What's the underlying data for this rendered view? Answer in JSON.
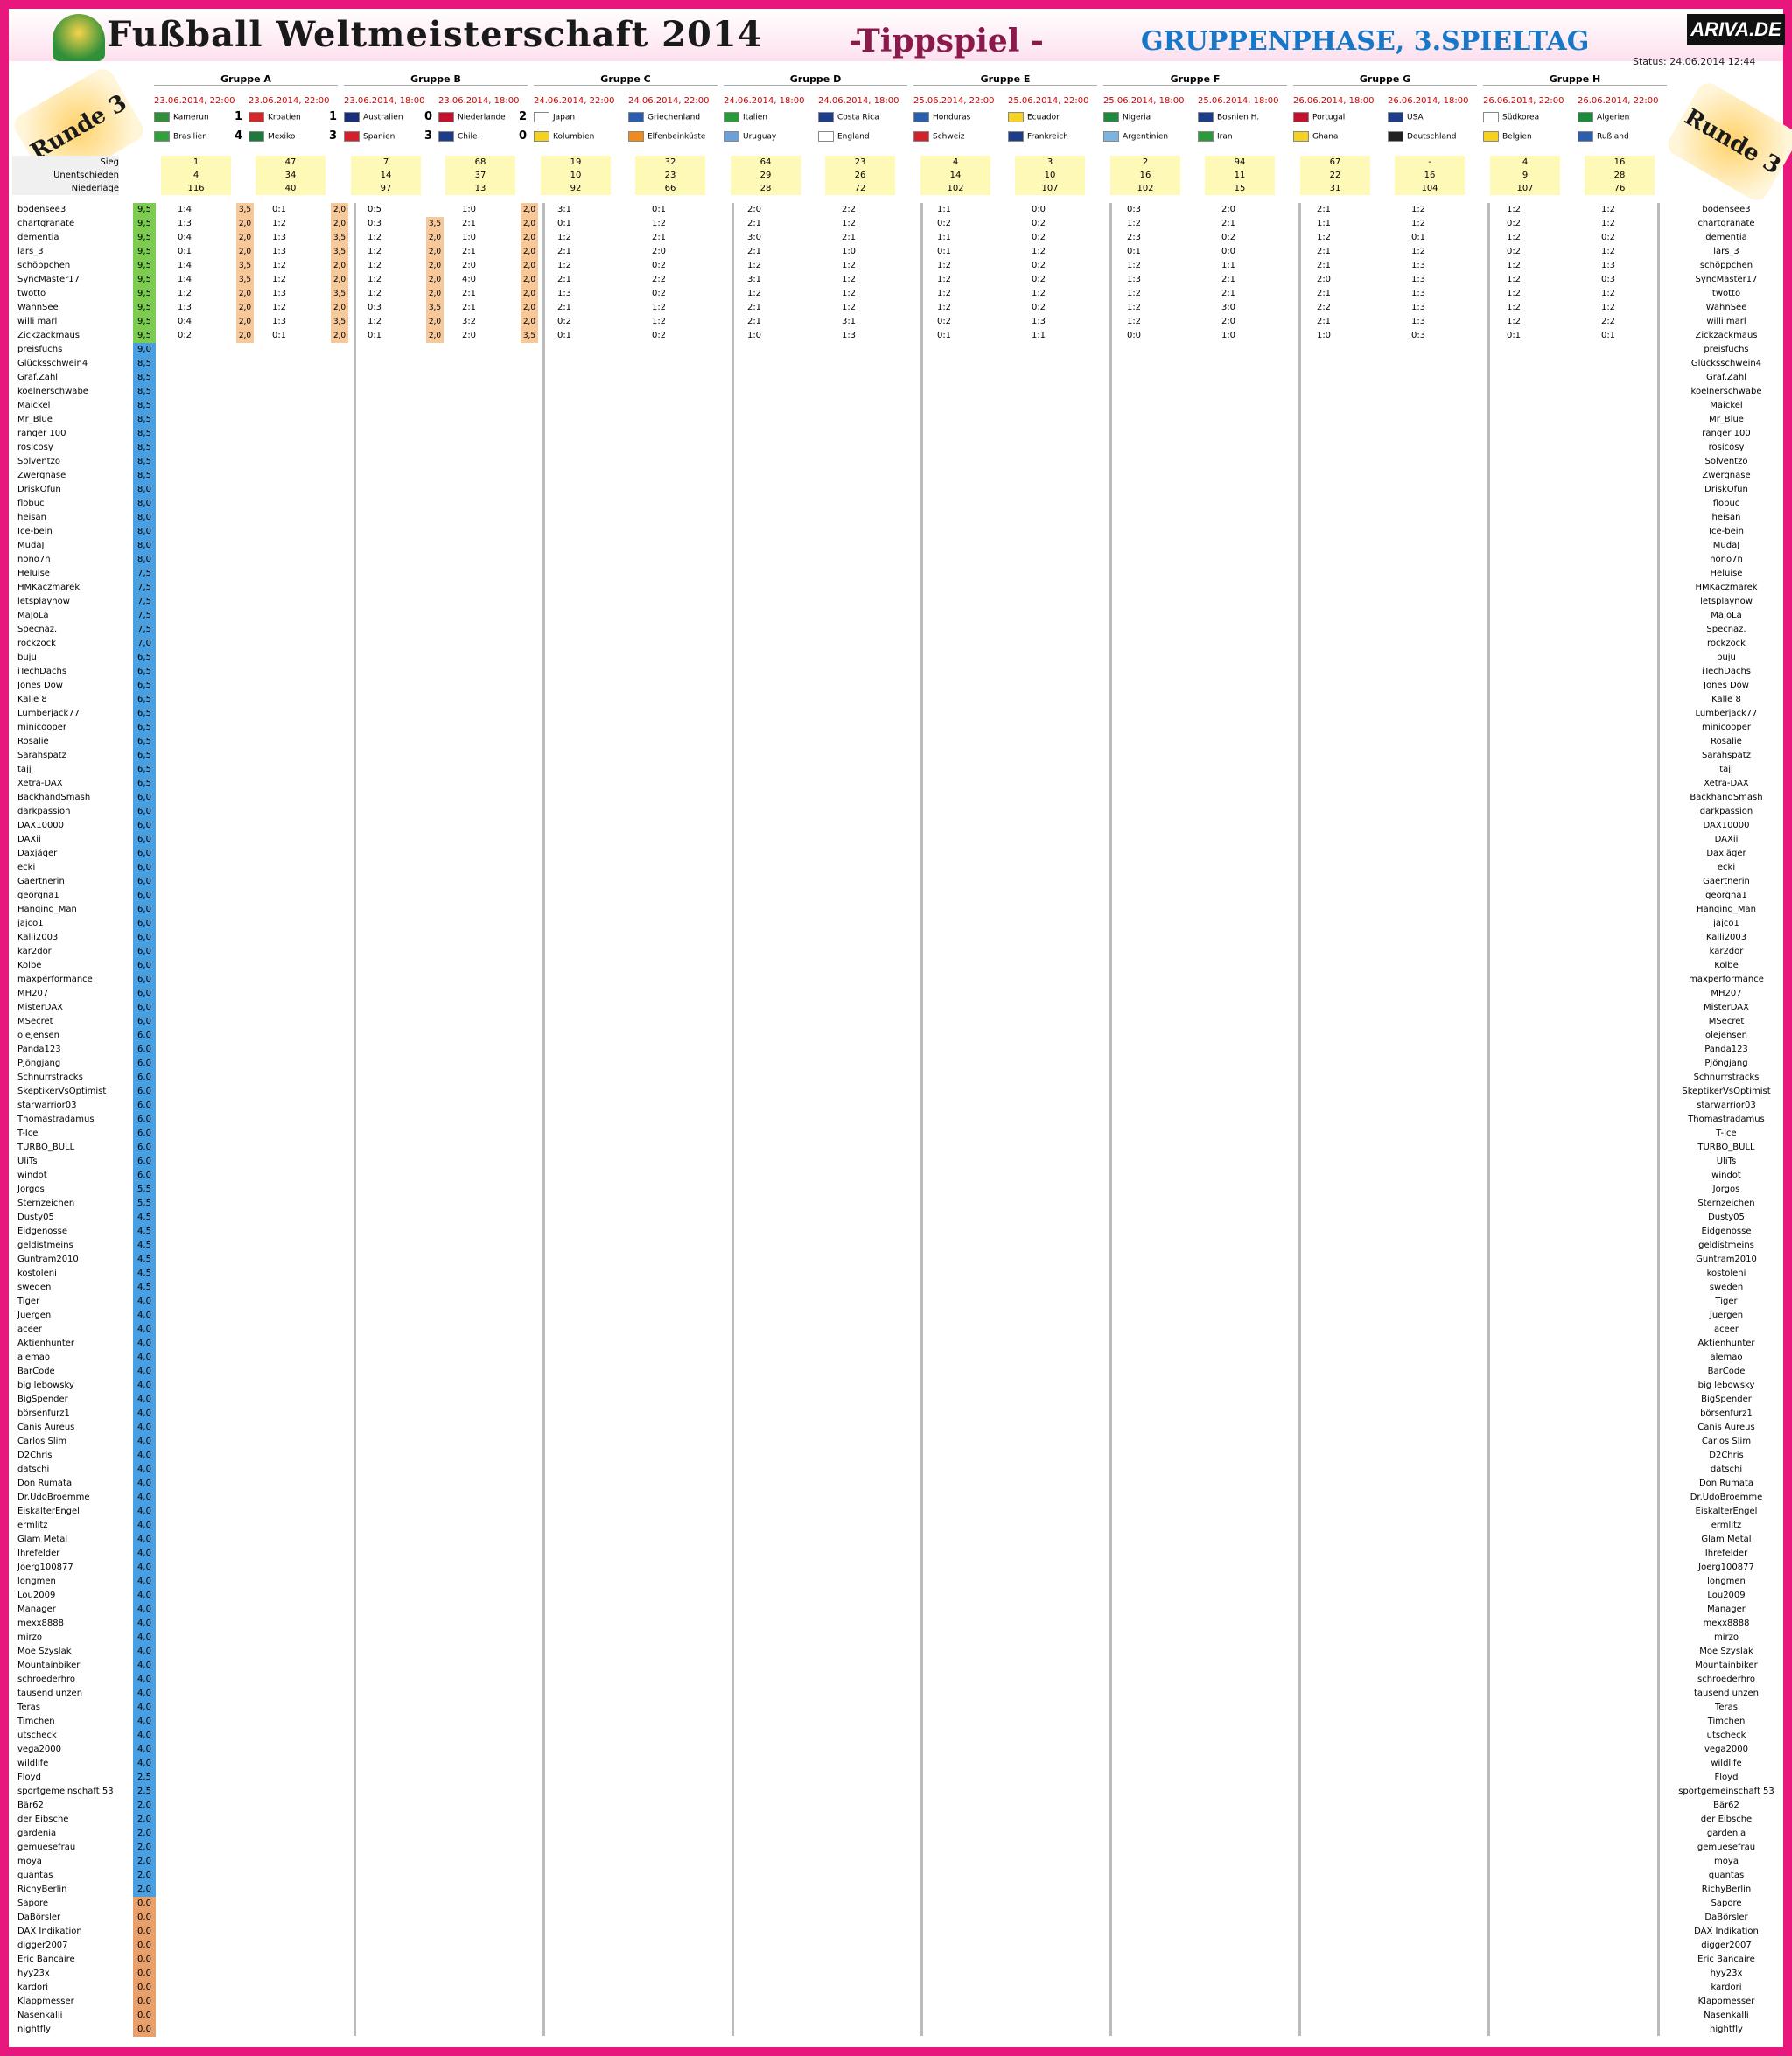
{
  "header": {
    "title": "Fußball Weltmeisterschaft 2014",
    "subtitle": "-Tippspiel -",
    "phase": "GRUPPENPHASE, 3.SPIELTAG",
    "logo_text": "ARIVA.DE",
    "status": "Status:  24.06.2014 12:44",
    "round_label": "Runde 3"
  },
  "stats_labels": [
    "Sieg",
    "Unentschieden",
    "Niederlage"
  ],
  "groups": [
    {
      "name": "Gruppe A",
      "matches": [
        {
          "date": "23.06.2014, 22:00",
          "home": "Kamerun",
          "away": "Brasilien",
          "score_home": "1",
          "score_away": "4",
          "flag_home": "#2f8f3a",
          "flag_away": "#2fa33a"
        },
        {
          "date": "23.06.2014, 22:00",
          "home": "Kroatien",
          "away": "Mexiko",
          "score_home": "1",
          "score_away": "3",
          "flag_home": "#d8252a",
          "flag_away": "#1d7a3c"
        }
      ]
    },
    {
      "name": "Gruppe B",
      "matches": [
        {
          "date": "23.06.2014, 18:00",
          "home": "Australien",
          "away": "Spanien",
          "score_home": "0",
          "score_away": "3",
          "flag_home": "#1a2f7a",
          "flag_away": "#d4202a"
        },
        {
          "date": "23.06.2014, 18:00",
          "home": "Niederlande",
          "away": "Chile",
          "score_home": "2",
          "score_away": "0",
          "flag_home": "#c8102e",
          "flag_away": "#1c3c8c"
        }
      ]
    },
    {
      "name": "Gruppe C",
      "matches": [
        {
          "date": "24.06.2014, 22:00",
          "home": "Japan",
          "away": "Kolumbien",
          "score_home": "",
          "score_away": "",
          "flag_home": "#ffffff",
          "flag_away": "#f6d21f"
        },
        {
          "date": "24.06.2014, 22:00",
          "home": "Griechenland",
          "away": "Elfenbeinküste",
          "score_home": "",
          "score_away": "",
          "flag_home": "#2a5fb0",
          "flag_away": "#f08a1c"
        }
      ]
    },
    {
      "name": "Gruppe D",
      "matches": [
        {
          "date": "24.06.2014, 18:00",
          "home": "Italien",
          "away": "Uruguay",
          "score_home": "",
          "score_away": "",
          "flag_home": "#2a9a3a",
          "flag_away": "#6ea0d8"
        },
        {
          "date": "24.06.2014, 18:00",
          "home": "Costa Rica",
          "away": "England",
          "score_home": "",
          "score_away": "",
          "flag_home": "#1c3c8c",
          "flag_away": "#ffffff"
        }
      ]
    },
    {
      "name": "Gruppe E",
      "matches": [
        {
          "date": "25.06.2014, 22:00",
          "home": "Honduras",
          "away": "Schweiz",
          "score_home": "",
          "score_away": "",
          "flag_home": "#2a5fb0",
          "flag_away": "#d4202a"
        },
        {
          "date": "25.06.2014, 22:00",
          "home": "Ecuador",
          "away": "Frankreich",
          "score_home": "",
          "score_away": "",
          "flag_home": "#f6d21f",
          "flag_away": "#1c3c8c"
        }
      ]
    },
    {
      "name": "Gruppe F",
      "matches": [
        {
          "date": "25.06.2014, 18:00",
          "home": "Nigeria",
          "away": "Argentinien",
          "score_home": "",
          "score_away": "",
          "flag_home": "#1d8a3c",
          "flag_away": "#7ab4e0"
        },
        {
          "date": "25.06.2014, 18:00",
          "home": "Bosnien H.",
          "away": "Iran",
          "score_home": "",
          "score_away": "",
          "flag_home": "#1c3c8c",
          "flag_away": "#2a9a3a"
        }
      ]
    },
    {
      "name": "Gruppe G",
      "matches": [
        {
          "date": "26.06.2014, 18:00",
          "home": "Portugal",
          "away": "Ghana",
          "score_home": "",
          "score_away": "",
          "flag_home": "#c8102e",
          "flag_away": "#f6d21f"
        },
        {
          "date": "26.06.2014, 18:00",
          "home": "USA",
          "away": "Deutschland",
          "score_home": "",
          "score_away": "",
          "flag_home": "#1c3c8c",
          "flag_away": "#222222"
        }
      ]
    },
    {
      "name": "Gruppe H",
      "matches": [
        {
          "date": "26.06.2014, 22:00",
          "home": "Südkorea",
          "away": "Belgien",
          "score_home": "",
          "score_away": "",
          "flag_home": "#ffffff",
          "flag_away": "#f6d21f"
        },
        {
          "date": "26.06.2014, 22:00",
          "home": "Algerien",
          "away": "Rußland",
          "score_home": "",
          "score_away": "",
          "flag_home": "#1d8a3c",
          "flag_away": "#2a5fb0"
        }
      ]
    }
  ],
  "stats": [
    [
      "1",
      "4",
      "116"
    ],
    [
      "47",
      "34",
      "40"
    ],
    [
      "7",
      "14",
      "97"
    ],
    [
      "68",
      "37",
      "13"
    ],
    [
      "19",
      "10",
      "92"
    ],
    [
      "32",
      "23",
      "66"
    ],
    [
      "64",
      "29",
      "28"
    ],
    [
      "23",
      "26",
      "72"
    ],
    [
      "4",
      "14",
      "102"
    ],
    [
      "3",
      "10",
      "107"
    ],
    [
      "2",
      "16",
      "102"
    ],
    [
      "94",
      "11",
      "15"
    ],
    [
      "67",
      "22",
      "31"
    ],
    [
      "-",
      "16",
      "104"
    ],
    [
      "4",
      "9",
      "107"
    ],
    [
      "16",
      "28",
      "76"
    ]
  ],
  "players": [
    {
      "name": "bodensee3",
      "pts": "9,5",
      "tips": [
        "1:4",
        "0:1",
        "0:5",
        "1:0",
        "3:1",
        "0:1",
        "2:0",
        "2:2",
        "1:1",
        "0:0",
        "0:3",
        "2:0",
        "2:1",
        "1:2",
        "1:2",
        "1:2"
      ],
      "bonus": [
        "3,5",
        "2,0",
        "",
        "2,0"
      ]
    },
    {
      "name": "chartgranate",
      "pts": "9,5",
      "tips": [
        "1:3",
        "1:2",
        "0:3",
        "2:1",
        "0:1",
        "1:2",
        "2:1",
        "1:2",
        "0:2",
        "0:2",
        "1:2",
        "2:1",
        "1:1",
        "1:2",
        "0:2",
        "1:2"
      ],
      "bonus": [
        "2,0",
        "2,0",
        "3,5",
        "2,0"
      ]
    },
    {
      "name": "dementia",
      "pts": "9,5",
      "tips": [
        "0:4",
        "1:3",
        "1:2",
        "1:0",
        "1:2",
        "2:1",
        "3:0",
        "2:1",
        "1:1",
        "0:2",
        "2:3",
        "0:2",
        "1:2",
        "0:1",
        "1:2",
        "0:2"
      ],
      "bonus": [
        "2,0",
        "3,5",
        "2,0",
        "2,0"
      ]
    },
    {
      "name": "lars_3",
      "pts": "9,5",
      "tips": [
        "0:1",
        "1:3",
        "1:2",
        "2:1",
        "2:1",
        "2:0",
        "2:1",
        "1:0",
        "0:1",
        "1:2",
        "0:1",
        "0:0",
        "2:1",
        "1:2",
        "0:2",
        "1:2"
      ],
      "bonus": [
        "2,0",
        "3,5",
        "2,0",
        "2,0"
      ]
    },
    {
      "name": "schöppchen",
      "pts": "9,5",
      "tips": [
        "1:4",
        "1:2",
        "1:2",
        "2:0",
        "1:2",
        "0:2",
        "1:2",
        "1:2",
        "1:2",
        "0:2",
        "1:2",
        "1:1",
        "2:1",
        "1:3",
        "1:2",
        "1:3"
      ],
      "bonus": [
        "3,5",
        "2,0",
        "2,0",
        "2,0"
      ]
    },
    {
      "name": "SyncMaster17",
      "pts": "9,5",
      "tips": [
        "1:4",
        "1:2",
        "1:2",
        "4:0",
        "2:1",
        "2:2",
        "3:1",
        "1:2",
        "1:2",
        "0:2",
        "1:3",
        "2:1",
        "2:0",
        "1:3",
        "1:2",
        "0:3"
      ],
      "bonus": [
        "3,5",
        "2,0",
        "2,0",
        "2,0"
      ]
    },
    {
      "name": "twotto",
      "pts": "9,5",
      "tips": [
        "1:2",
        "1:3",
        "1:2",
        "2:1",
        "1:3",
        "0:2",
        "1:2",
        "1:2",
        "1:2",
        "1:2",
        "1:2",
        "2:1",
        "2:1",
        "1:3",
        "1:2",
        "1:2"
      ],
      "bonus": [
        "2,0",
        "3,5",
        "2,0",
        "2,0"
      ]
    },
    {
      "name": "WahnSee",
      "pts": "9,5",
      "tips": [
        "1:3",
        "1:2",
        "0:3",
        "2:1",
        "2:1",
        "1:2",
        "2:1",
        "1:2",
        "1:2",
        "0:2",
        "1:2",
        "3:0",
        "2:2",
        "1:3",
        "1:2",
        "1:2"
      ],
      "bonus": [
        "2,0",
        "2,0",
        "3,5",
        "2,0"
      ]
    },
    {
      "name": "willi marl",
      "pts": "9,5",
      "tips": [
        "0:4",
        "1:3",
        "1:2",
        "3:2",
        "0:2",
        "1:2",
        "2:1",
        "3:1",
        "0:2",
        "1:3",
        "1:2",
        "2:0",
        "2:1",
        "1:3",
        "1:2",
        "2:2"
      ],
      "bonus": [
        "2,0",
        "3,5",
        "2,0",
        "2,0"
      ]
    },
    {
      "name": "Zickzackmaus",
      "pts": "9,5",
      "tips": [
        "0:2",
        "0:1",
        "0:1",
        "2:0",
        "0:1",
        "0:2",
        "1:0",
        "1:3",
        "0:1",
        "1:1",
        "0:0",
        "1:0",
        "1:0",
        "0:3",
        "0:1",
        "0:1"
      ],
      "bonus": [
        "2,0",
        "2,0",
        "2,0",
        "3,5"
      ]
    }
  ],
  "more_players": [
    "preisfuchs",
    "Glücksschwein4",
    "Graf.Zahl",
    "koelnerschwabe",
    "Maickel",
    "Mr_Blue",
    "ranger 100",
    "rosicosy",
    "Solventzo",
    "Zwergnase",
    "DriskOfun",
    "flobuc",
    "heisan",
    "Ice-bein",
    "MudaJ",
    "nono7n",
    "Heluise",
    "HMKaczmarek",
    "letsplaynow",
    "MaJoLa",
    "Specnaz.",
    "rockzock",
    "buju",
    "iTechDachs",
    "Jones Dow",
    "Kalle 8",
    "Lumberjack77",
    "minicooper",
    "Rosalie",
    "Sarahspatz",
    "tajj",
    "Xetra-DAX",
    "BackhandSmash",
    "darkpassion",
    "DAX10000",
    "DAXii",
    "Daxjäger",
    "ecki",
    "Gaertnerin",
    "georgna1",
    "Hanging_Man",
    "jajco1",
    "Kalli2003",
    "kar2dor",
    "Kolbe",
    "maxperformance",
    "MH207",
    "MisterDAX",
    "MSecret",
    "olejensen",
    "Panda123",
    "Pjöngjang",
    "Schnurrstracks",
    "SkeptikerVsOptimist",
    "starwarrior03",
    "Thomastradamus",
    "T-Ice",
    "TURBO_BULL",
    "UliTs",
    "windot",
    "Jorgos",
    "Sternzeichen",
    "Dusty05",
    "Eidgenosse",
    "geldistmeins",
    "Guntram2010",
    "kostoleni",
    "sweden",
    "Tiger",
    "Juergen",
    "aceer",
    "Aktienhunter",
    "alemao",
    "BarCode",
    "big lebowsky",
    "BigSpender",
    "börsenfurz1",
    "Canis Aureus",
    "Carlos Slim",
    "D2Chris",
    "datschi",
    "Don Rumata",
    "Dr.UdoBroemme",
    "EiskalterEngel",
    "ermlitz",
    "Glam Metal",
    "Ihrefelder",
    "Joerg100877",
    "longmen",
    "Lou2009",
    "Manager",
    "mexx8888",
    "mirzo",
    "Moe Szyslak",
    "Mountainbiker",
    "schroederhro",
    "tausend unzen",
    "Teras",
    "Timchen",
    "utscheck",
    "vega2000",
    "wildlife",
    "Floyd",
    "sportgemeinschaft 53",
    "Bär62",
    "der Eibsche",
    "gardenia",
    "gemuesefrau",
    "moya",
    "quantas",
    "RichyBerlin",
    "Sapore",
    "DaBörsler",
    "DAX Indikation",
    "digger2007",
    "Eric Bancaire",
    "hyy23x",
    "kardori",
    "Klappmesser",
    "Nasenkalli",
    "nightfly"
  ],
  "more_points": [
    "9,0",
    "8,5",
    "8,5",
    "8,5",
    "8,5",
    "8,5",
    "8,5",
    "8,5",
    "8,5",
    "8,5",
    "8,0",
    "8,0",
    "8,0",
    "8,0",
    "8,0",
    "8,0",
    "7,5",
    "7,5",
    "7,5",
    "7,5",
    "7,5",
    "7,0",
    "6,5",
    "6,5",
    "6,5",
    "6,5",
    "6,5",
    "6,5",
    "6,5",
    "6,5",
    "6,5",
    "6,5",
    "6,0",
    "6,0",
    "6,0",
    "6,0",
    "6,0",
    "6,0",
    "6,0",
    "6,0",
    "6,0",
    "6,0",
    "6,0",
    "6,0",
    "6,0",
    "6,0",
    "6,0",
    "6,0",
    "6,0",
    "6,0",
    "6,0",
    "6,0",
    "6,0",
    "6,0",
    "6,0",
    "6,0",
    "6,0",
    "6,0",
    "6,0",
    "6,0",
    "5,5",
    "5,5",
    "4,5",
    "4,5",
    "4,5",
    "4,5",
    "4,5",
    "4,5",
    "4,0",
    "4,0",
    "4,0",
    "4,0",
    "4,0",
    "4,0",
    "4,0",
    "4,0",
    "4,0",
    "4,0",
    "4,0",
    "4,0",
    "4,0",
    "4,0",
    "4,0",
    "4,0",
    "4,0",
    "4,0",
    "4,0",
    "4,0",
    "4,0",
    "4,0",
    "4,0",
    "4,0",
    "4,0",
    "4,0",
    "4,0",
    "4,0",
    "4,0",
    "4,0",
    "4,0",
    "4,0",
    "4,0",
    "4,0",
    "2,5",
    "2,5",
    "2,0",
    "2,0",
    "2,0",
    "2,0",
    "2,0",
    "2,0",
    "2,0",
    "0,0",
    "0,0",
    "0,0",
    "0,0",
    "0,0",
    "0,0",
    "0,0",
    "0,0",
    "0,0",
    "0,0"
  ],
  "colors": {
    "frame": "#e8177e",
    "points_green": "#7ccc52",
    "points_blue": "#4a9fe0",
    "points_orange": "#e8a06a",
    "bonus": "#f7c89a",
    "stats_bg": "#fff9b8"
  }
}
